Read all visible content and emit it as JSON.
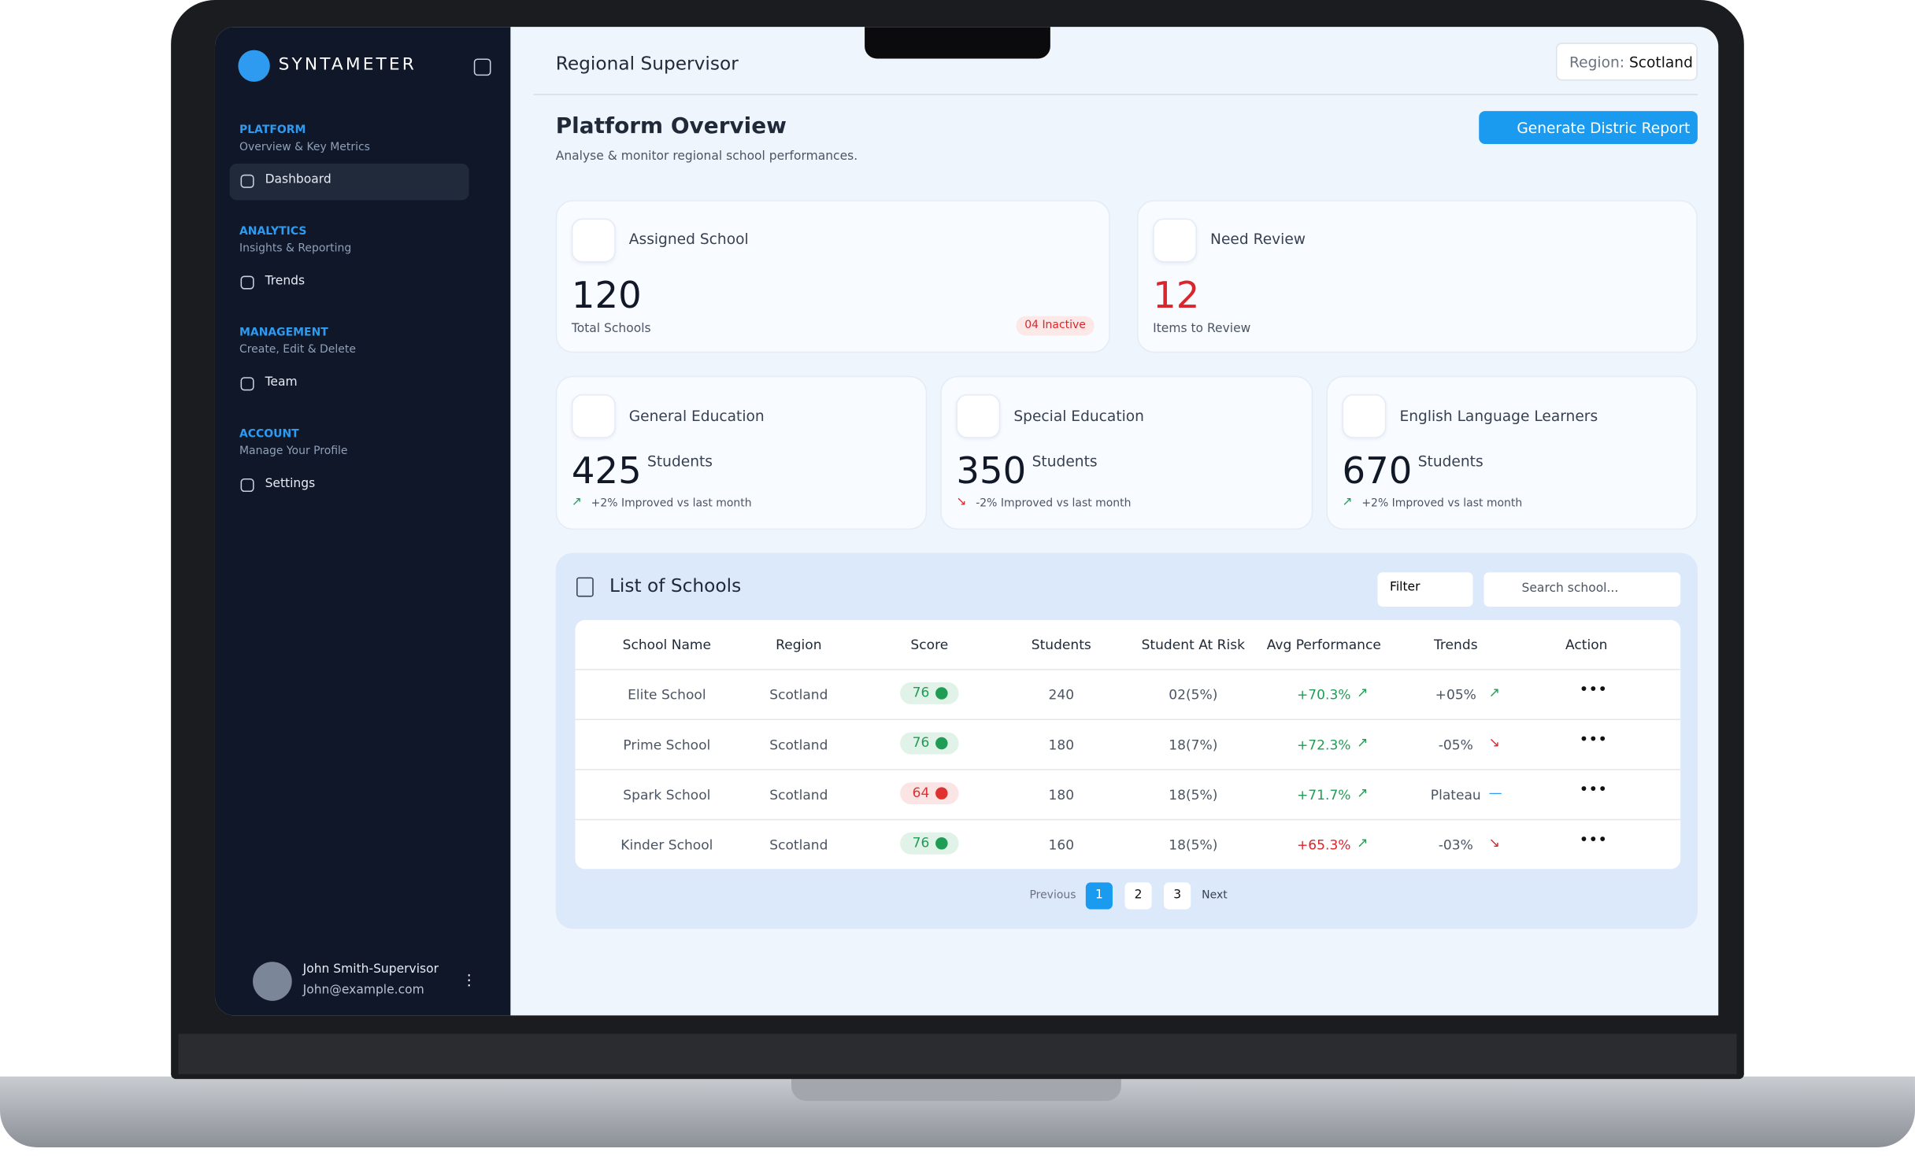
{
  "header": {
    "title": "Regional Supervisor",
    "region_label": "Region:",
    "region": "Scotland"
  },
  "sidebar": {
    "brand": "SYNTAMETER",
    "sections": [
      {
        "title": "PLATFORM",
        "subtitle": "Overview & Key Metrics",
        "item": "Dashboard"
      },
      {
        "title": "ANALYTICS",
        "subtitle": "Insights & Reporting",
        "item": "Trends"
      },
      {
        "title": "MANAGEMENT",
        "subtitle": "Create, Edit & Delete",
        "item": "Team"
      },
      {
        "title": "ACCOUNT",
        "subtitle": "Manage Your Profile",
        "item": "Settings"
      }
    ],
    "user": {
      "name": "John Smith-Supervisor",
      "email": "John@example.com"
    }
  },
  "page": {
    "title": "Platform Overview",
    "subtitle": "Analyse & monitor regional school performances.",
    "button": "Generate Distric Report"
  },
  "cards": [
    {
      "label": "Assigned School",
      "value": 120,
      "caption": "Total Schools",
      "badge": "04 Inactive"
    },
    {
      "label": "Need Review",
      "value": 12,
      "caption": "Items to Review"
    }
  ],
  "stats": [
    {
      "label": "General Education",
      "value": 425,
      "unit": "Students",
      "change": "+2% Improved vs last month"
    },
    {
      "label": "Special Education",
      "value": 350,
      "unit": "Students",
      "change": "-2% Improved vs last month"
    },
    {
      "label": "English Language Learners",
      "value": 670,
      "unit": "Students",
      "change": "+2% Improved vs last month"
    }
  ],
  "table": {
    "title": "List of Schools",
    "filter": "Filter",
    "search_placeholder": "Search school...",
    "columns": [
      "School Name",
      "Region",
      "Score",
      "Students",
      "Student At Risk",
      "Avg Performance",
      "Trends",
      "Action"
    ],
    "rows": [
      {
        "cells": [
          "Elite School",
          "Scotland",
          76,
          240,
          "02(5%)",
          "+70.3%",
          "+05%"
        ],
        "score_color": "#1f9d55"
      },
      {
        "cells": [
          "Prime School",
          "Scotland",
          76,
          180,
          "18(7%)",
          "+72.3%",
          "-05%"
        ],
        "score_color": "#1f9d55"
      },
      {
        "cells": [
          "Spark School",
          "Scotland",
          64,
          180,
          "18(5%)",
          "+71.7%",
          "Plateau"
        ],
        "score_color": "#e03131"
      },
      {
        "cells": [
          "Kinder School",
          "Scotland",
          76,
          160,
          "18(5%)",
          "+65.3%",
          "-03%"
        ],
        "score_color": "#1f9d55"
      }
    ]
  },
  "pagination": {
    "previous": "Previous",
    "pages": [
      "1",
      "2",
      "3"
    ],
    "next": "Next"
  }
}
